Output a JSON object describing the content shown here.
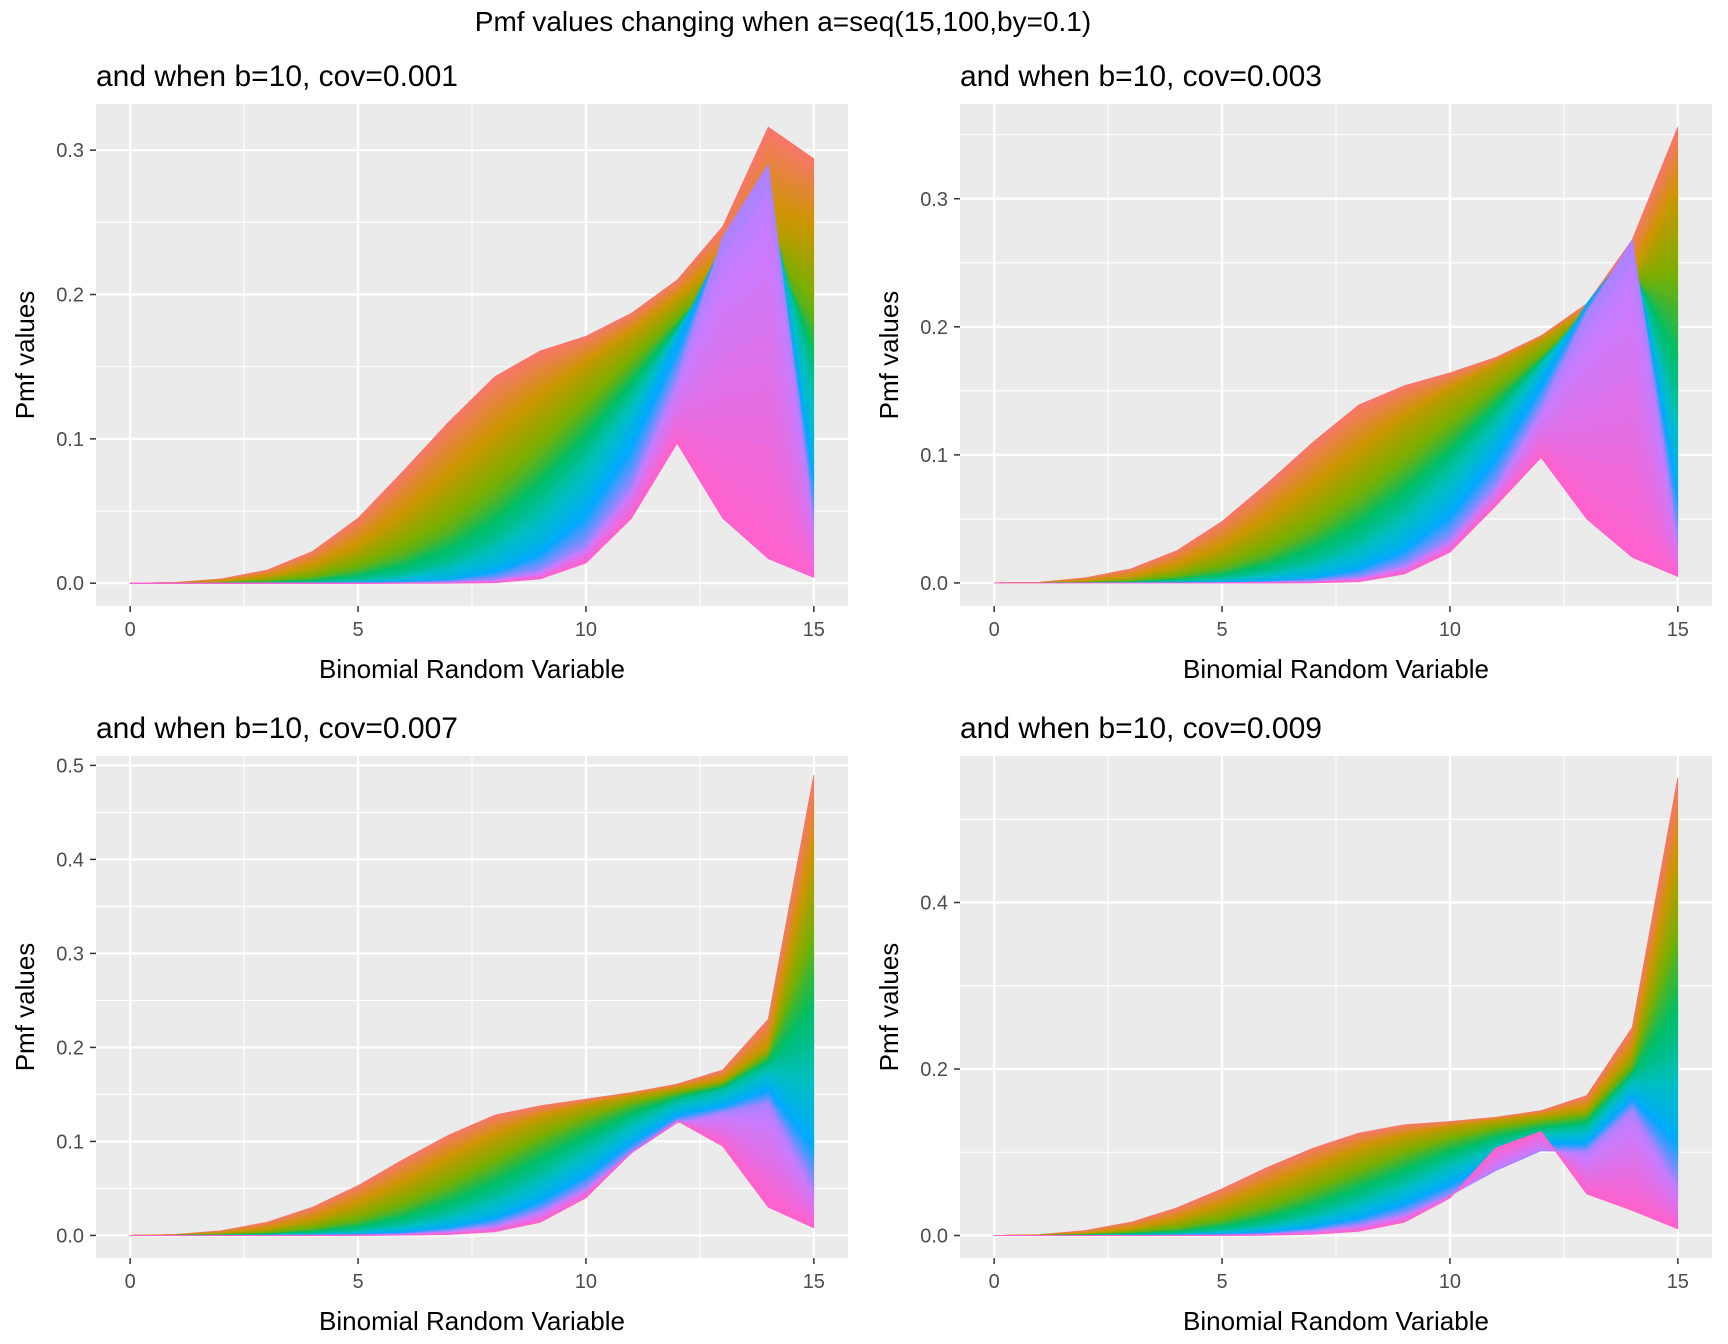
{
  "figure_title": "Pmf values changing when a=seq(15,100,by=0.1)",
  "colors": {
    "panel_background": "#EBEBEB",
    "grid": "#FFFFFF",
    "band_palette": [
      "#F8766D",
      "#CD9600",
      "#7CAE00",
      "#00BE67",
      "#00BFC4",
      "#00A9FF",
      "#C77CFF",
      "#FF61CC"
    ]
  },
  "chart_data": [
    {
      "type": "area",
      "title": "and when b=10, cov=0.001",
      "xlabel": "Binomial Random Variable",
      "ylabel": "Pmf values",
      "xlim": [
        -0.75,
        15.75
      ],
      "ylim": [
        -0.0158,
        0.332
      ],
      "xticks": [
        0,
        5,
        10,
        15
      ],
      "yticks": [
        0.0,
        0.1,
        0.2,
        0.3
      ],
      "ytick_labels": [
        "0.0",
        "0.1",
        "0.2",
        "0.3"
      ],
      "x": [
        0,
        1,
        2,
        3,
        4,
        5,
        6,
        7,
        8,
        9,
        10,
        11,
        12,
        13,
        14,
        15
      ],
      "series": [
        {
          "values": [
            0.0,
            0.0005,
            0.003,
            0.009,
            0.022,
            0.045,
            0.078,
            0.112,
            0.143,
            0.161,
            0.171,
            0.187,
            0.21,
            0.247,
            0.316,
            0.294
          ]
        },
        {
          "values": [
            0.0,
            0.0001,
            0.001,
            0.004,
            0.011,
            0.024,
            0.045,
            0.071,
            0.099,
            0.125,
            0.15,
            0.172,
            0.196,
            0.223,
            0.246,
            0.24
          ]
        },
        {
          "values": [
            0.0,
            0.0,
            0.0003,
            0.001,
            0.003,
            0.009,
            0.019,
            0.035,
            0.058,
            0.086,
            0.117,
            0.149,
            0.181,
            0.213,
            0.227,
            0.18
          ]
        },
        {
          "values": [
            0.0,
            0.0,
            0.0,
            0.0001,
            0.0005,
            0.002,
            0.006,
            0.014,
            0.03,
            0.055,
            0.089,
            0.13,
            0.175,
            0.225,
            0.262,
            0.14
          ]
        },
        {
          "values": [
            0.0,
            0.0,
            0.0,
            0.0,
            0.0,
            0.0003,
            0.001,
            0.003,
            0.01,
            0.025,
            0.055,
            0.105,
            0.17,
            0.235,
            0.27,
            0.08
          ]
        },
        {
          "values": [
            0.0,
            0.0,
            0.0,
            0.0,
            0.0,
            0.0,
            0.0001,
            0.0005,
            0.002,
            0.008,
            0.025,
            0.066,
            0.14,
            0.24,
            0.29,
            0.04
          ]
        },
        {
          "values": [
            0.0,
            0.0,
            0.0,
            0.0,
            0.0,
            0.0,
            0.0,
            0.0,
            0.0003,
            0.003,
            0.014,
            0.045,
            0.097,
            0.045,
            0.017,
            0.004
          ]
        }
      ]
    },
    {
      "type": "area",
      "title": "and when b=10, cov=0.003",
      "xlabel": "Binomial Random Variable",
      "ylabel": "Pmf values",
      "xlim": [
        -0.75,
        15.75
      ],
      "ylim": [
        -0.018,
        0.374
      ],
      "xticks": [
        0,
        5,
        10,
        15
      ],
      "yticks": [
        0.0,
        0.1,
        0.2,
        0.3
      ],
      "ytick_labels": [
        "0.0",
        "0.1",
        "0.2",
        "0.3"
      ],
      "x": [
        0,
        1,
        2,
        3,
        4,
        5,
        6,
        7,
        8,
        9,
        10,
        11,
        12,
        13,
        14,
        15
      ],
      "series": [
        {
          "values": [
            0.0,
            0.0005,
            0.004,
            0.011,
            0.025,
            0.048,
            0.078,
            0.11,
            0.139,
            0.154,
            0.164,
            0.176,
            0.193,
            0.218,
            0.268,
            0.356
          ]
        },
        {
          "values": [
            0.0,
            0.0001,
            0.001,
            0.004,
            0.012,
            0.026,
            0.047,
            0.072,
            0.1,
            0.127,
            0.15,
            0.17,
            0.19,
            0.212,
            0.24,
            0.3
          ]
        },
        {
          "values": [
            0.0,
            0.0,
            0.0003,
            0.001,
            0.004,
            0.01,
            0.021,
            0.038,
            0.061,
            0.088,
            0.117,
            0.147,
            0.176,
            0.206,
            0.235,
            0.22
          ]
        },
        {
          "values": [
            0.0,
            0.0,
            0.0,
            0.0002,
            0.001,
            0.003,
            0.008,
            0.017,
            0.033,
            0.058,
            0.091,
            0.13,
            0.172,
            0.214,
            0.25,
            0.14
          ]
        },
        {
          "values": [
            0.0,
            0.0,
            0.0,
            0.0,
            0.0001,
            0.0005,
            0.002,
            0.005,
            0.013,
            0.03,
            0.06,
            0.105,
            0.16,
            0.218,
            0.262,
            0.08
          ]
        },
        {
          "values": [
            0.0,
            0.0,
            0.0,
            0.0,
            0.0,
            0.0,
            0.0003,
            0.001,
            0.004,
            0.013,
            0.033,
            0.074,
            0.135,
            0.21,
            0.268,
            0.03
          ]
        },
        {
          "values": [
            0.0,
            0.0,
            0.0,
            0.0,
            0.0,
            0.0,
            0.0,
            0.0001,
            0.001,
            0.007,
            0.024,
            0.06,
            0.098,
            0.05,
            0.02,
            0.005
          ]
        }
      ]
    },
    {
      "type": "area",
      "title": "and when b=10, cov=0.007",
      "xlabel": "Binomial Random Variable",
      "ylabel": "Pmf values",
      "xlim": [
        -0.75,
        15.75
      ],
      "ylim": [
        -0.024,
        0.51
      ],
      "xticks": [
        0,
        5,
        10,
        15
      ],
      "yticks": [
        0.0,
        0.1,
        0.2,
        0.3,
        0.4,
        0.5
      ],
      "ytick_labels": [
        "0.0",
        "0.1",
        "0.2",
        "0.3",
        "0.4",
        "0.5"
      ],
      "x": [
        0,
        1,
        2,
        3,
        4,
        5,
        6,
        7,
        8,
        9,
        10,
        11,
        12,
        13,
        14,
        15
      ],
      "series": [
        {
          "values": [
            0.0,
            0.001,
            0.005,
            0.014,
            0.03,
            0.053,
            0.081,
            0.107,
            0.128,
            0.138,
            0.145,
            0.152,
            0.161,
            0.176,
            0.23,
            0.49
          ]
        },
        {
          "values": [
            0.0,
            0.0002,
            0.002,
            0.006,
            0.016,
            0.032,
            0.054,
            0.079,
            0.104,
            0.124,
            0.138,
            0.148,
            0.156,
            0.165,
            0.2,
            0.4
          ]
        },
        {
          "values": [
            0.0,
            0.0,
            0.0005,
            0.002,
            0.006,
            0.014,
            0.028,
            0.048,
            0.072,
            0.098,
            0.12,
            0.138,
            0.15,
            0.16,
            0.19,
            0.3
          ]
        },
        {
          "values": [
            0.0,
            0.0,
            0.0001,
            0.0005,
            0.002,
            0.005,
            0.012,
            0.024,
            0.042,
            0.067,
            0.095,
            0.122,
            0.143,
            0.155,
            0.18,
            0.2
          ]
        },
        {
          "values": [
            0.0,
            0.0,
            0.0,
            0.0001,
            0.0005,
            0.0015,
            0.004,
            0.01,
            0.021,
            0.04,
            0.068,
            0.102,
            0.13,
            0.14,
            0.16,
            0.11
          ]
        },
        {
          "values": [
            0.0,
            0.0,
            0.0,
            0.0,
            0.0001,
            0.0004,
            0.001,
            0.004,
            0.01,
            0.025,
            0.05,
            0.088,
            0.12,
            0.13,
            0.14,
            0.05
          ]
        },
        {
          "values": [
            0.0,
            0.0,
            0.0,
            0.0,
            0.0,
            0.0001,
            0.0003,
            0.001,
            0.004,
            0.014,
            0.04,
            0.088,
            0.122,
            0.095,
            0.03,
            0.008
          ]
        }
      ]
    },
    {
      "type": "area",
      "title": "and when b=10, cov=0.009",
      "xlabel": "Binomial Random Variable",
      "ylabel": "Pmf values",
      "xlim": [
        -0.75,
        15.75
      ],
      "ylim": [
        -0.027,
        0.576
      ],
      "xticks": [
        0,
        5,
        10,
        15
      ],
      "yticks": [
        0.0,
        0.2,
        0.4
      ],
      "ytick_labels": [
        "0.0",
        "0.2",
        "0.4"
      ],
      "x": [
        0,
        1,
        2,
        3,
        4,
        5,
        6,
        7,
        8,
        9,
        10,
        11,
        12,
        13,
        14,
        15
      ],
      "series": [
        {
          "values": [
            0.0,
            0.001,
            0.006,
            0.016,
            0.033,
            0.056,
            0.082,
            0.105,
            0.123,
            0.133,
            0.137,
            0.142,
            0.15,
            0.168,
            0.25,
            0.55
          ]
        },
        {
          "values": [
            0.0,
            0.0003,
            0.002,
            0.007,
            0.018,
            0.035,
            0.056,
            0.079,
            0.101,
            0.118,
            0.13,
            0.138,
            0.144,
            0.152,
            0.22,
            0.45
          ]
        },
        {
          "values": [
            0.0,
            0.0,
            0.001,
            0.003,
            0.007,
            0.016,
            0.03,
            0.049,
            0.071,
            0.093,
            0.112,
            0.126,
            0.135,
            0.142,
            0.2,
            0.34
          ]
        },
        {
          "values": [
            0.0,
            0.0,
            0.0001,
            0.001,
            0.002,
            0.006,
            0.013,
            0.026,
            0.044,
            0.066,
            0.09,
            0.11,
            0.124,
            0.13,
            0.19,
            0.22
          ]
        },
        {
          "values": [
            0.0,
            0.0,
            0.0,
            0.0002,
            0.0006,
            0.002,
            0.005,
            0.012,
            0.024,
            0.042,
            0.066,
            0.092,
            0.112,
            0.115,
            0.17,
            0.13
          ]
        },
        {
          "values": [
            0.0,
            0.0,
            0.0,
            0.0,
            0.0001,
            0.0005,
            0.0015,
            0.005,
            0.012,
            0.025,
            0.048,
            0.078,
            0.102,
            0.1,
            0.15,
            0.06
          ]
        },
        {
          "values": [
            0.0,
            0.0,
            0.0,
            0.0,
            0.0,
            0.0001,
            0.0004,
            0.0015,
            0.005,
            0.016,
            0.045,
            0.105,
            0.125,
            0.05,
            0.03,
            0.008
          ]
        }
      ]
    }
  ]
}
